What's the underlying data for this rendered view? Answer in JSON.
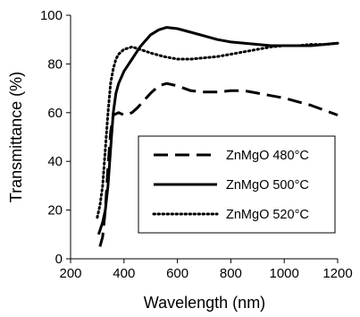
{
  "chart_data": {
    "type": "line",
    "xlabel": "Wavelength (nm)",
    "ylabel": "Transmittance (%)",
    "xlim": [
      200,
      1200
    ],
    "ylim": [
      0,
      100
    ],
    "xticks": [
      200,
      400,
      600,
      800,
      1000,
      1200
    ],
    "yticks": [
      0,
      20,
      40,
      60,
      80,
      100
    ],
    "grid": false,
    "legend_position": "lower-right",
    "series": [
      {
        "name": "ZnMgO 480°C",
        "style": "dashed",
        "color": "#000000",
        "x": [
          310,
          320,
          330,
          340,
          350,
          360,
          380,
          400,
          430,
          450,
          500,
          530,
          560,
          600,
          650,
          700,
          750,
          800,
          850,
          900,
          950,
          1000,
          1050,
          1100,
          1150,
          1200
        ],
        "y": [
          5,
          9,
          20,
          38,
          52,
          59,
          60,
          59,
          60,
          62,
          68,
          71,
          72,
          71,
          69,
          68.5,
          68.5,
          69,
          69,
          68,
          67,
          66,
          64.5,
          63,
          61,
          59
        ]
      },
      {
        "name": "ZnMgO 500°C",
        "style": "solid",
        "color": "#000000",
        "x": [
          305,
          320,
          330,
          340,
          350,
          360,
          370,
          380,
          400,
          430,
          460,
          500,
          530,
          560,
          600,
          650,
          700,
          750,
          800,
          850,
          900,
          950,
          1000,
          1050,
          1100,
          1150,
          1200
        ],
        "y": [
          10,
          15,
          20,
          30,
          45,
          60,
          68,
          72,
          77,
          82,
          87,
          92,
          94,
          95,
          94.5,
          93,
          91.5,
          90,
          89,
          88.5,
          88,
          87.5,
          87.5,
          87.5,
          87.5,
          88,
          88.5
        ]
      },
      {
        "name": "ZnMgO 520°C",
        "style": "dotted",
        "color": "#000000",
        "x": [
          300,
          310,
          320,
          330,
          340,
          350,
          360,
          370,
          380,
          400,
          430,
          460,
          500,
          550,
          600,
          650,
          700,
          750,
          800,
          850,
          900,
          950,
          1000,
          1050,
          1100,
          1150,
          1200
        ],
        "y": [
          17,
          22,
          30,
          45,
          60,
          72,
          78,
          82,
          84,
          86,
          87,
          86,
          84.5,
          83,
          82,
          82,
          82.5,
          83,
          84,
          85,
          86,
          87,
          87.5,
          87.5,
          88,
          88,
          88.5
        ]
      }
    ]
  }
}
